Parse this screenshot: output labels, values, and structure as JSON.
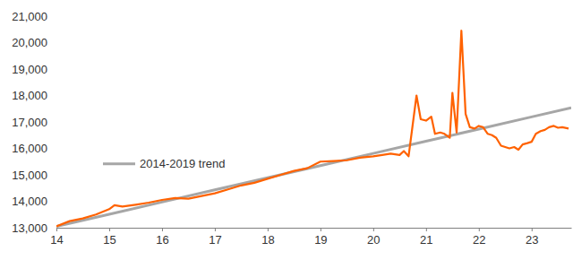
{
  "chart_data": {
    "type": "line",
    "xlim": [
      14,
      23.75
    ],
    "xticks": [
      14,
      15,
      16,
      17,
      18,
      19,
      20,
      21,
      22,
      23
    ],
    "ylim": [
      13000,
      21000
    ],
    "yticks": [
      {
        "value": 13000,
        "label": "13,000"
      },
      {
        "value": 14000,
        "label": "14,000"
      },
      {
        "value": 15000,
        "label": "15,000"
      },
      {
        "value": 16000,
        "label": "16,000"
      },
      {
        "value": 17000,
        "label": "17,000"
      },
      {
        "value": 18000,
        "label": "18,000"
      },
      {
        "value": 19000,
        "label": "19,000"
      },
      {
        "value": 20000,
        "label": "20,000"
      },
      {
        "value": 21000,
        "label": "21,000"
      }
    ],
    "grid": false,
    "legend": "left",
    "series": [
      {
        "color": "#ff6200",
        "x": [
          14,
          14.25,
          14.5,
          14.75,
          15,
          15.1,
          15.25,
          15.5,
          15.75,
          16,
          16.25,
          16.5,
          16.75,
          17,
          17.25,
          17.5,
          17.75,
          18,
          18.25,
          18.5,
          18.75,
          19,
          19.25,
          19.5,
          19.75,
          20,
          20.17,
          20.33,
          20.5,
          20.58,
          20.67,
          20.82,
          20.9,
          21,
          21.1,
          21.17,
          21.27,
          21.35,
          21.45,
          21.5,
          21.58,
          21.67,
          21.75,
          21.83,
          21.92,
          22,
          22.08,
          22.17,
          22.25,
          22.33,
          22.42,
          22.5,
          22.58,
          22.67,
          22.75,
          22.83,
          22.92,
          23,
          23.08,
          23.17,
          23.25,
          23.33,
          23.42,
          23.5,
          23.58,
          23.7
        ],
        "values": [
          13050,
          13250,
          13350,
          13500,
          13700,
          13850,
          13800,
          13870,
          13950,
          14050,
          14120,
          14100,
          14200,
          14300,
          14450,
          14600,
          14700,
          14850,
          15000,
          15150,
          15250,
          15500,
          15520,
          15550,
          15650,
          15700,
          15750,
          15800,
          15750,
          15900,
          15700,
          18000,
          17100,
          17050,
          17200,
          16550,
          16600,
          16550,
          16400,
          18100,
          16600,
          20450,
          17300,
          16800,
          16750,
          16850,
          16800,
          16550,
          16500,
          16400,
          16100,
          16050,
          16000,
          16050,
          15950,
          16150,
          16200,
          16250,
          16550,
          16650,
          16700,
          16800,
          16850,
          16780,
          16800,
          16750
        ]
      },
      {
        "name": "2014-2019 trend",
        "color": "#a6a6a6",
        "x": [
          14,
          15,
          16,
          17,
          18,
          19,
          20,
          21,
          22,
          23,
          23.75
        ],
        "values": [
          13050,
          13510,
          13970,
          14430,
          14890,
          15350,
          15810,
          16270,
          16730,
          17190,
          17535
        ]
      }
    ]
  }
}
